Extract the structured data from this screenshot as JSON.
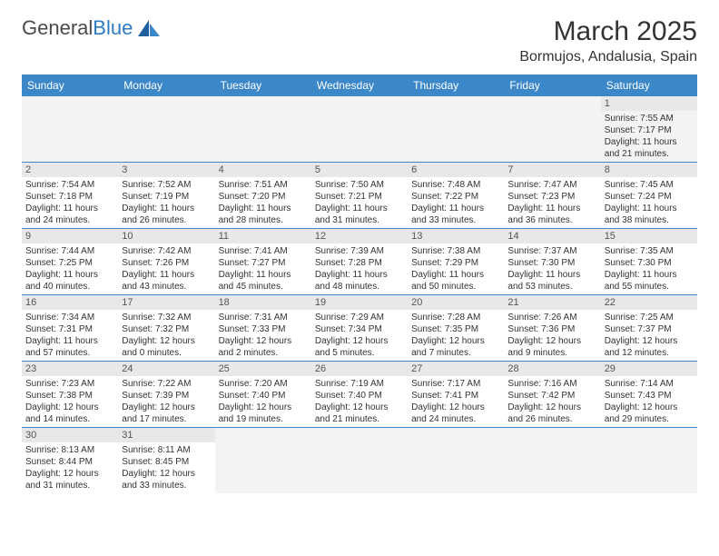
{
  "logo": {
    "text1": "General",
    "text2": "Blue"
  },
  "title": "March 2025",
  "location": "Bormujos, Andalusia, Spain",
  "colors": {
    "header_bg": "#3b87c8",
    "header_text": "#ffffff",
    "border": "#3b87c8",
    "daynum_bg": "#e8e8e8",
    "empty_bg": "#f3f3f3",
    "logo_blue": "#2f7bbf",
    "text": "#333333"
  },
  "day_headers": [
    "Sunday",
    "Monday",
    "Tuesday",
    "Wednesday",
    "Thursday",
    "Friday",
    "Saturday"
  ],
  "weeks": [
    [
      null,
      null,
      null,
      null,
      null,
      null,
      {
        "n": "1",
        "sr": "7:55 AM",
        "ss": "7:17 PM",
        "dl": "11 hours and 21 minutes."
      }
    ],
    [
      {
        "n": "2",
        "sr": "7:54 AM",
        "ss": "7:18 PM",
        "dl": "11 hours and 24 minutes."
      },
      {
        "n": "3",
        "sr": "7:52 AM",
        "ss": "7:19 PM",
        "dl": "11 hours and 26 minutes."
      },
      {
        "n": "4",
        "sr": "7:51 AM",
        "ss": "7:20 PM",
        "dl": "11 hours and 28 minutes."
      },
      {
        "n": "5",
        "sr": "7:50 AM",
        "ss": "7:21 PM",
        "dl": "11 hours and 31 minutes."
      },
      {
        "n": "6",
        "sr": "7:48 AM",
        "ss": "7:22 PM",
        "dl": "11 hours and 33 minutes."
      },
      {
        "n": "7",
        "sr": "7:47 AM",
        "ss": "7:23 PM",
        "dl": "11 hours and 36 minutes."
      },
      {
        "n": "8",
        "sr": "7:45 AM",
        "ss": "7:24 PM",
        "dl": "11 hours and 38 minutes."
      }
    ],
    [
      {
        "n": "9",
        "sr": "7:44 AM",
        "ss": "7:25 PM",
        "dl": "11 hours and 40 minutes."
      },
      {
        "n": "10",
        "sr": "7:42 AM",
        "ss": "7:26 PM",
        "dl": "11 hours and 43 minutes."
      },
      {
        "n": "11",
        "sr": "7:41 AM",
        "ss": "7:27 PM",
        "dl": "11 hours and 45 minutes."
      },
      {
        "n": "12",
        "sr": "7:39 AM",
        "ss": "7:28 PM",
        "dl": "11 hours and 48 minutes."
      },
      {
        "n": "13",
        "sr": "7:38 AM",
        "ss": "7:29 PM",
        "dl": "11 hours and 50 minutes."
      },
      {
        "n": "14",
        "sr": "7:37 AM",
        "ss": "7:30 PM",
        "dl": "11 hours and 53 minutes."
      },
      {
        "n": "15",
        "sr": "7:35 AM",
        "ss": "7:30 PM",
        "dl": "11 hours and 55 minutes."
      }
    ],
    [
      {
        "n": "16",
        "sr": "7:34 AM",
        "ss": "7:31 PM",
        "dl": "11 hours and 57 minutes."
      },
      {
        "n": "17",
        "sr": "7:32 AM",
        "ss": "7:32 PM",
        "dl": "12 hours and 0 minutes."
      },
      {
        "n": "18",
        "sr": "7:31 AM",
        "ss": "7:33 PM",
        "dl": "12 hours and 2 minutes."
      },
      {
        "n": "19",
        "sr": "7:29 AM",
        "ss": "7:34 PM",
        "dl": "12 hours and 5 minutes."
      },
      {
        "n": "20",
        "sr": "7:28 AM",
        "ss": "7:35 PM",
        "dl": "12 hours and 7 minutes."
      },
      {
        "n": "21",
        "sr": "7:26 AM",
        "ss": "7:36 PM",
        "dl": "12 hours and 9 minutes."
      },
      {
        "n": "22",
        "sr": "7:25 AM",
        "ss": "7:37 PM",
        "dl": "12 hours and 12 minutes."
      }
    ],
    [
      {
        "n": "23",
        "sr": "7:23 AM",
        "ss": "7:38 PM",
        "dl": "12 hours and 14 minutes."
      },
      {
        "n": "24",
        "sr": "7:22 AM",
        "ss": "7:39 PM",
        "dl": "12 hours and 17 minutes."
      },
      {
        "n": "25",
        "sr": "7:20 AM",
        "ss": "7:40 PM",
        "dl": "12 hours and 19 minutes."
      },
      {
        "n": "26",
        "sr": "7:19 AM",
        "ss": "7:40 PM",
        "dl": "12 hours and 21 minutes."
      },
      {
        "n": "27",
        "sr": "7:17 AM",
        "ss": "7:41 PM",
        "dl": "12 hours and 24 minutes."
      },
      {
        "n": "28",
        "sr": "7:16 AM",
        "ss": "7:42 PM",
        "dl": "12 hours and 26 minutes."
      },
      {
        "n": "29",
        "sr": "7:14 AM",
        "ss": "7:43 PM",
        "dl": "12 hours and 29 minutes."
      }
    ],
    [
      {
        "n": "30",
        "sr": "8:13 AM",
        "ss": "8:44 PM",
        "dl": "12 hours and 31 minutes."
      },
      {
        "n": "31",
        "sr": "8:11 AM",
        "ss": "8:45 PM",
        "dl": "12 hours and 33 minutes."
      },
      null,
      null,
      null,
      null,
      null
    ]
  ]
}
